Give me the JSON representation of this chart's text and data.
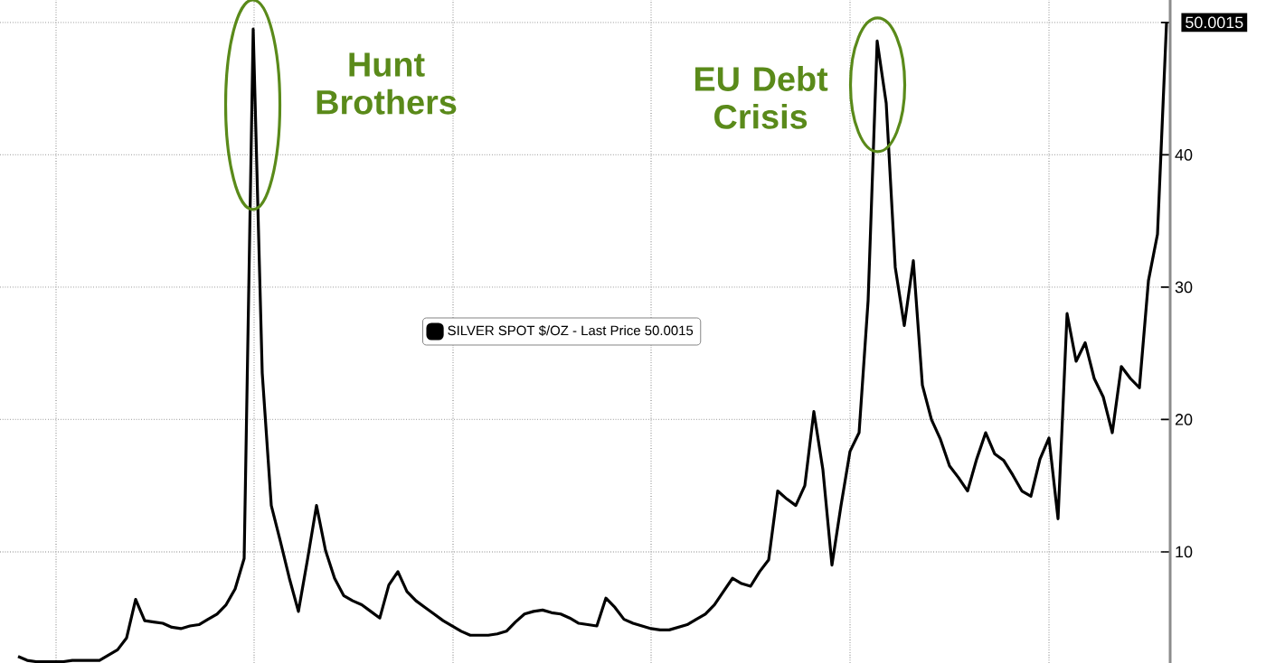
{
  "chart_data": {
    "type": "line",
    "categories": [
      null,
      null,
      null,
      null,
      null,
      null,
      null,
      null,
      null,
      null,
      null,
      null,
      null,
      null,
      null,
      null,
      null,
      null,
      null,
      null,
      null,
      null,
      null,
      null,
      null,
      null,
      null,
      null,
      null,
      null,
      null,
      null,
      null,
      null,
      null,
      null,
      null,
      null,
      null,
      null,
      null,
      null,
      null,
      null,
      null,
      null,
      null,
      null,
      null,
      null,
      null,
      null,
      null,
      null,
      null,
      null,
      null,
      null,
      null,
      null,
      null,
      null,
      null,
      null,
      null,
      null,
      null,
      null,
      null,
      null,
      null,
      null,
      null,
      null,
      null,
      null,
      null,
      null,
      null,
      null,
      null,
      null,
      null,
      null,
      null,
      null,
      null,
      null,
      null,
      null,
      null,
      null,
      null,
      null,
      null,
      null,
      null,
      null,
      null,
      null,
      null,
      null,
      null,
      null,
      null,
      null,
      null,
      null,
      null,
      null,
      null,
      null,
      null,
      null,
      null,
      null,
      null,
      null,
      null,
      null,
      null,
      null,
      null,
      null,
      null,
      null,
      null,
      null
    ],
    "series": [
      {
        "name": "SILVER SPOT $/OZ - Last Price 50.0015",
        "color": "#000000",
        "values": [
          2.1,
          1.8,
          1.7,
          1.7,
          1.7,
          1.7,
          1.8,
          1.8,
          1.8,
          1.8,
          2.2,
          2.6,
          3.5,
          6.4,
          4.8,
          4.7,
          4.6,
          4.3,
          4.2,
          4.4,
          4.5,
          4.9,
          5.3,
          6.0,
          7.2,
          9.5,
          49.5,
          23.5,
          13.5,
          10.8,
          8.0,
          5.5,
          9.4,
          13.5,
          10.1,
          8.0,
          6.7,
          6.3,
          6.0,
          5.5,
          5.0,
          7.5,
          8.5,
          7.0,
          6.3,
          5.8,
          5.3,
          4.8,
          4.4,
          4.0,
          3.7,
          3.7,
          3.7,
          3.8,
          4.0,
          4.7,
          5.3,
          5.5,
          5.6,
          5.4,
          5.3,
          5.0,
          4.6,
          4.5,
          4.4,
          6.5,
          5.8,
          4.9,
          4.6,
          4.4,
          4.2,
          4.1,
          4.1,
          4.3,
          4.5,
          4.9,
          5.3,
          6.0,
          7.0,
          8.0,
          7.6,
          7.4,
          8.5,
          9.4,
          14.6,
          14.0,
          13.5,
          15.0,
          20.6,
          16.2,
          9.0,
          13.5,
          17.6,
          19.0,
          29.0,
          48.6,
          43.9,
          31.5,
          27.1,
          32.0,
          22.6,
          20.0,
          18.5,
          16.5,
          15.6,
          14.6,
          17.0,
          19.0,
          17.4,
          16.9,
          15.8,
          14.6,
          14.2,
          17.0,
          18.6,
          12.5,
          28.0,
          24.4,
          25.8,
          23.1,
          21.7,
          19.0,
          24.0,
          23.1,
          22.4,
          30.5,
          34.0,
          50.0
        ]
      }
    ],
    "ylim": [
      1.6,
      51.7
    ],
    "yticks": [
      10,
      20,
      30,
      40,
      {
        "value": 50,
        "label": null
      }
    ],
    "grid": true,
    "legend": "center",
    "line_style": "solid",
    "annotations": [
      "Hunt Brothers",
      "EU Debt Crisis",
      "50.0015"
    ]
  }
}
